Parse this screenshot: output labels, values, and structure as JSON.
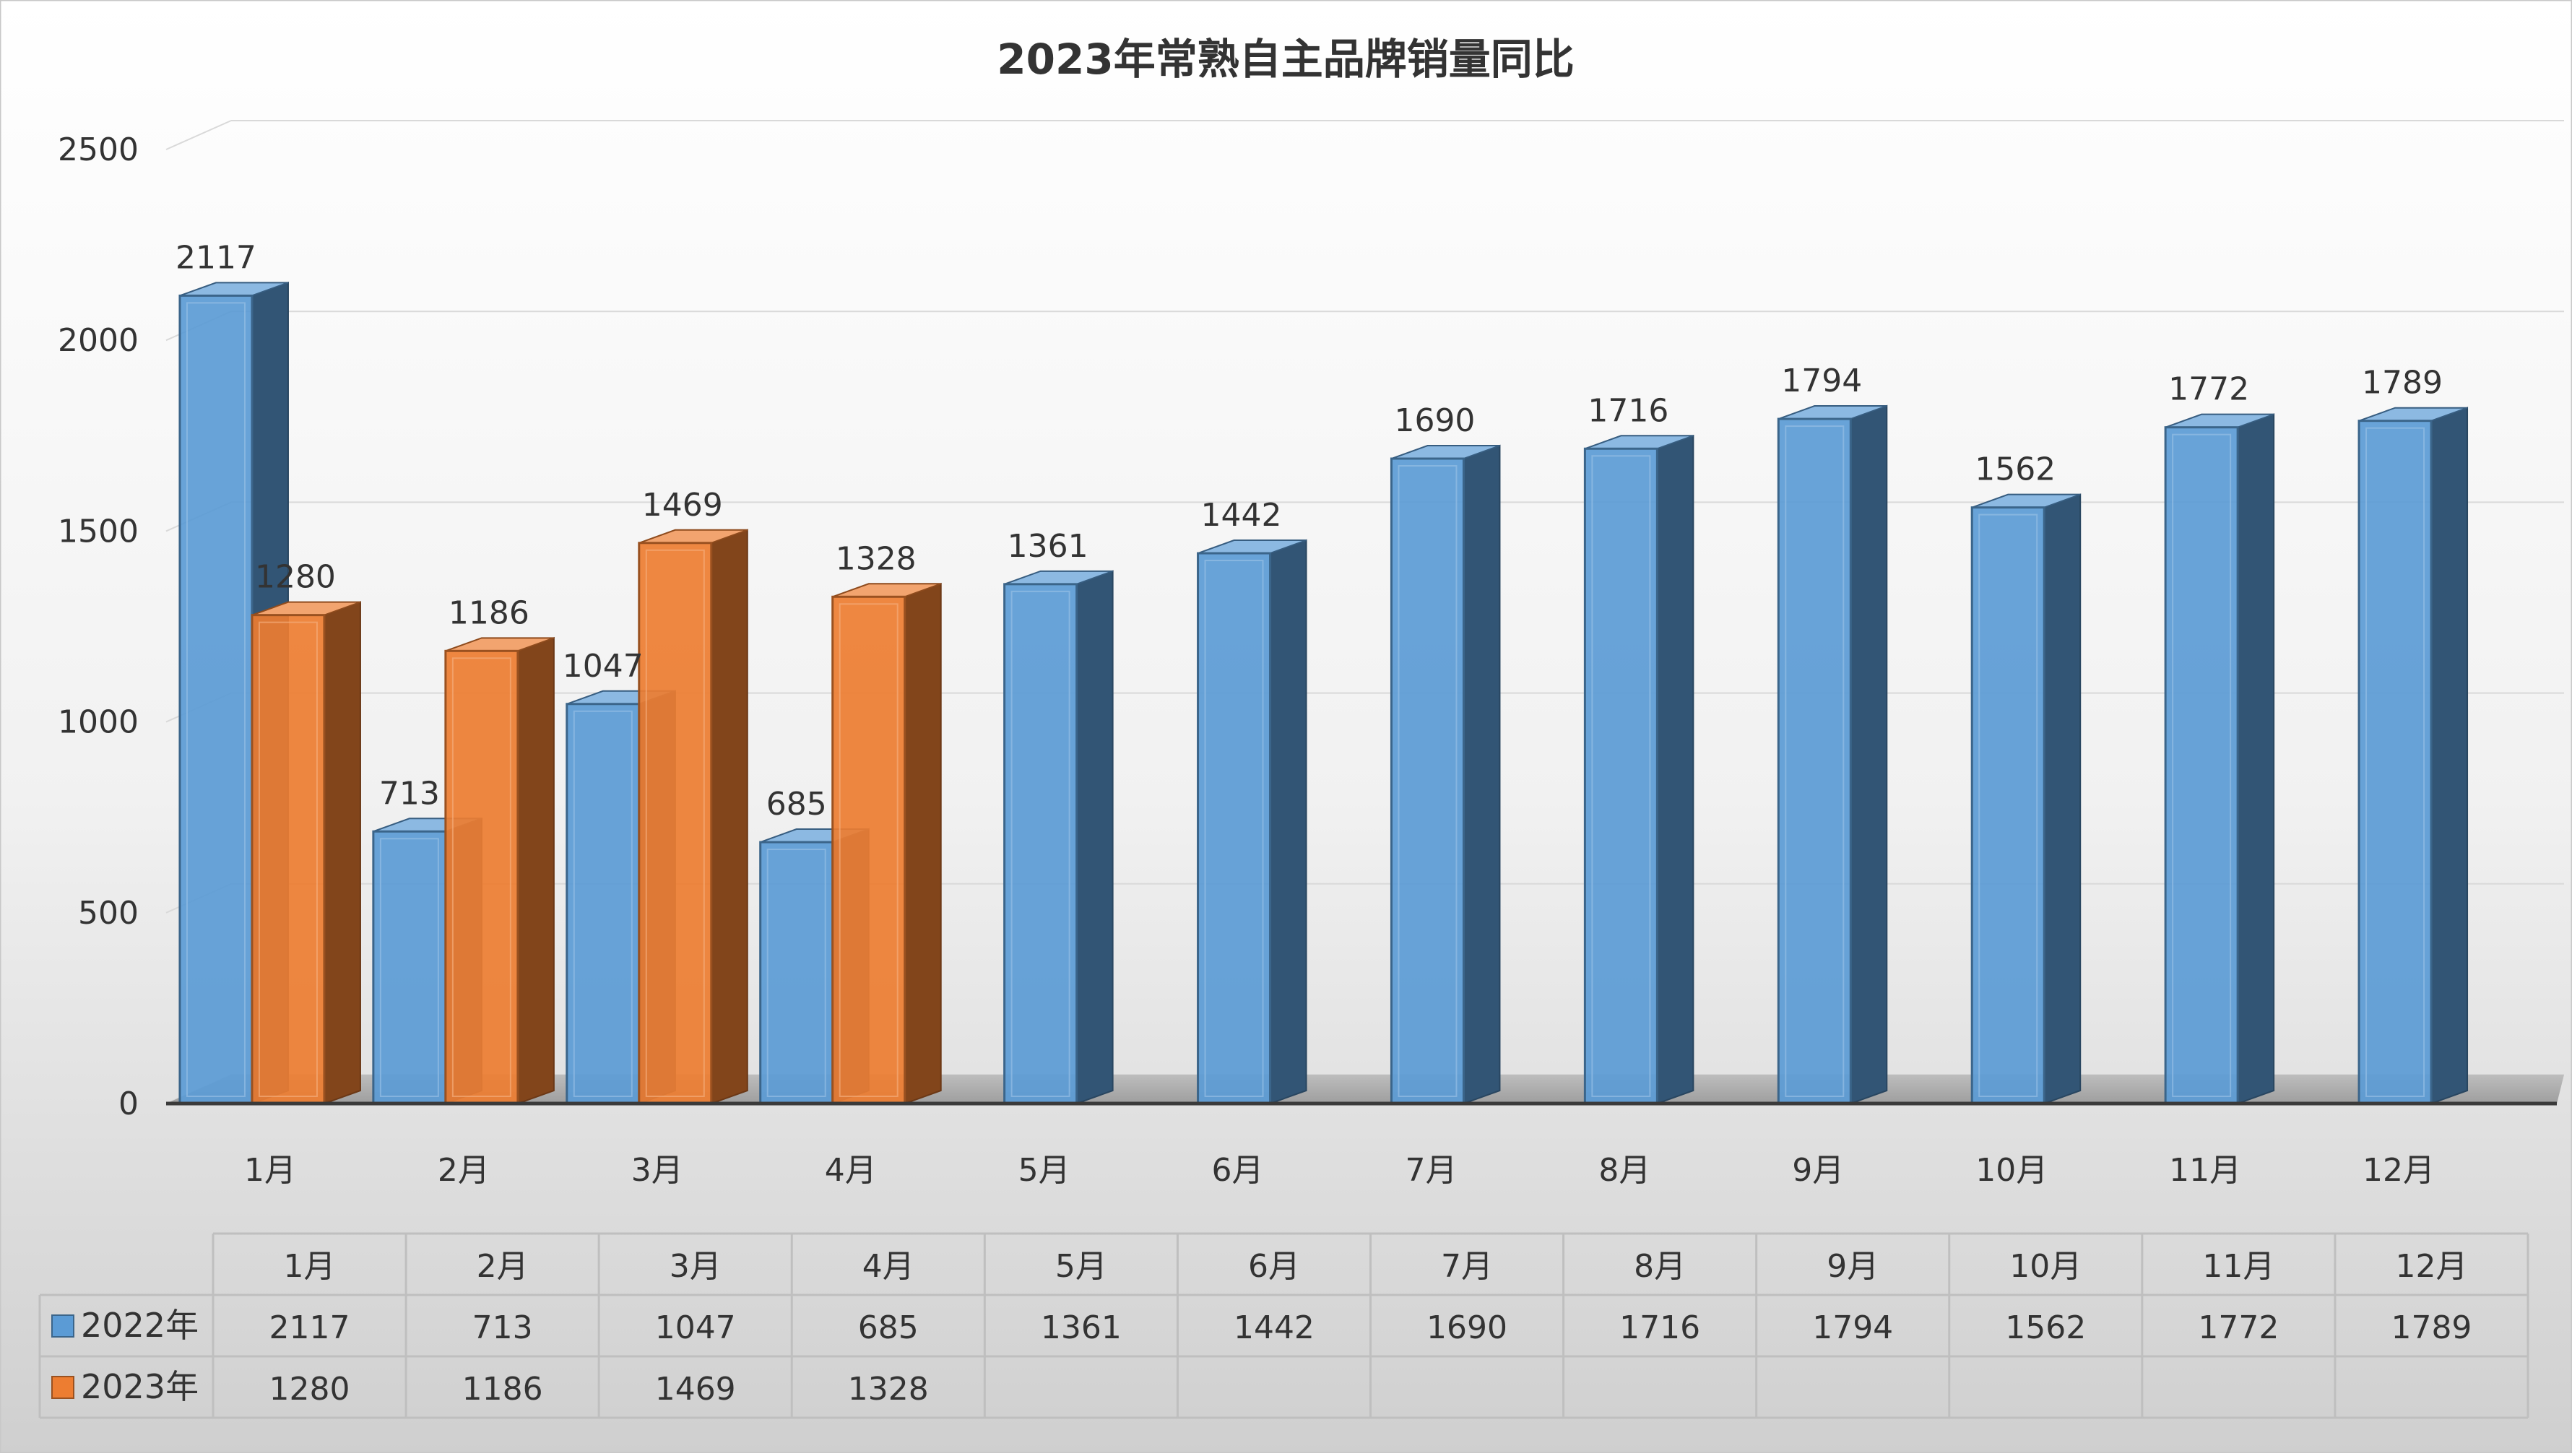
{
  "chart_data": {
    "type": "bar",
    "title": "2023年常熟自主品牌销量同比",
    "categories": [
      "1月",
      "2月",
      "3月",
      "4月",
      "5月",
      "6月",
      "7月",
      "8月",
      "9月",
      "10月",
      "11月",
      "12月"
    ],
    "series": [
      {
        "name": "2022年",
        "values": [
          2117,
          713,
          1047,
          685,
          1361,
          1442,
          1690,
          1716,
          1794,
          1562,
          1772,
          1789
        ]
      },
      {
        "name": "2023年",
        "values": [
          1280,
          1186,
          1469,
          1328,
          null,
          null,
          null,
          null,
          null,
          null,
          null,
          null
        ]
      }
    ],
    "ylim": [
      0,
      2500
    ],
    "yticks": [
      0,
      500,
      1000,
      1500,
      2000,
      2500
    ],
    "data_labels": true,
    "data_table": true,
    "grid": true,
    "legend": "data-table"
  },
  "colors": {
    "series_2022": "#5b9bd5",
    "series_2023": "#ed7d31"
  }
}
